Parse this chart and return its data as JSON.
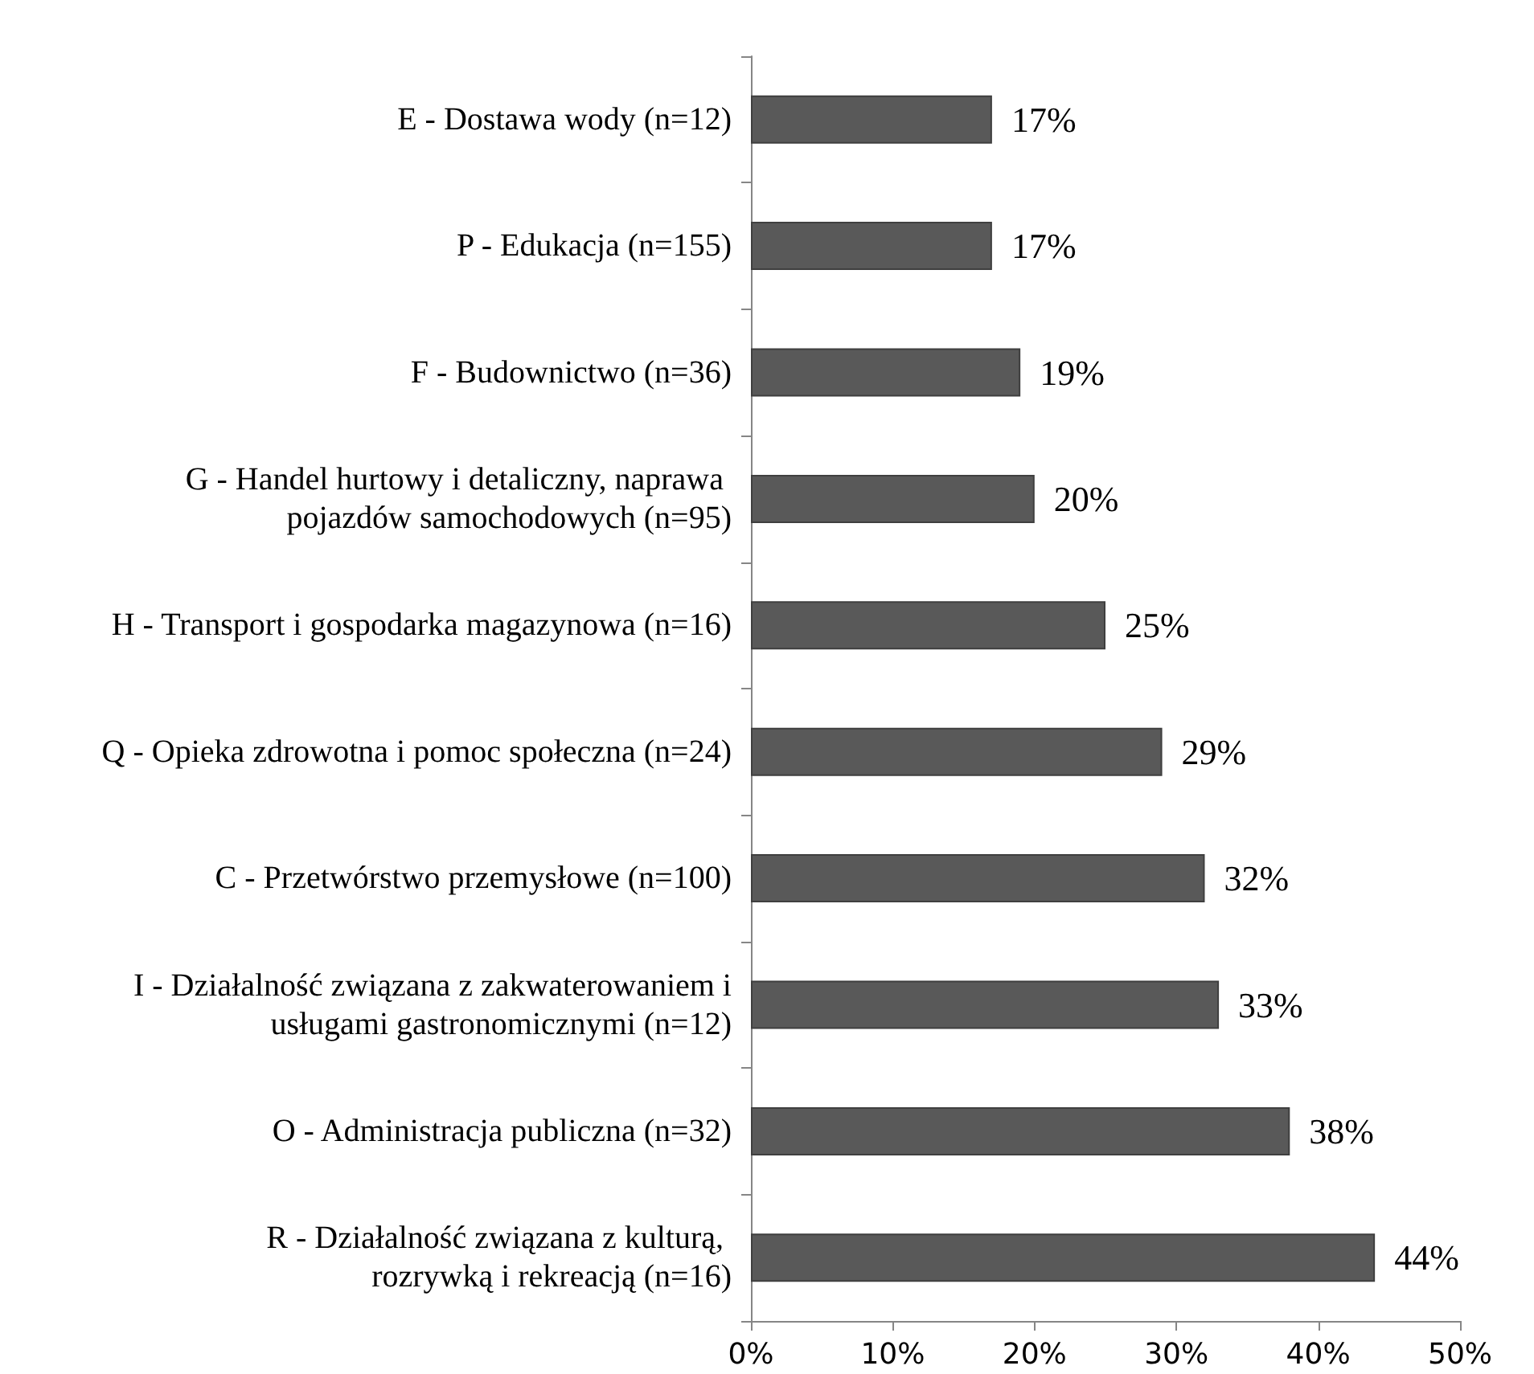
{
  "chart_data": {
    "type": "bar",
    "orientation": "horizontal",
    "categories": [
      "E - Dostawa wody (n=12)",
      "P - Edukacja (n=155)",
      "F - Budownictwo (n=36)",
      "G - Handel hurtowy i detaliczny, naprawa pojazdów samochodowych (n=95)",
      "H - Transport i gospodarka magazynowa (n=16)",
      "Q - Opieka zdrowotna i pomoc społeczna (n=24)",
      "C - Przetwórstwo przemysłowe (n=100)",
      "I - Działalność związana z zakwaterowaniem i usługami gastronomicznymi (n=12)",
      "O - Administracja publiczna (n=32)",
      "R - Działalność związana z kulturą, rozrywką i rekreacją (n=16)"
    ],
    "values": [
      17,
      17,
      19,
      20,
      25,
      29,
      32,
      33,
      38,
      44
    ],
    "value_labels": [
      "17%",
      "17%",
      "19%",
      "20%",
      "25%",
      "29%",
      "32%",
      "33%",
      "38%",
      "44%"
    ],
    "color": "#595959",
    "xlim": [
      0,
      50
    ],
    "xticks": [
      {
        "value": 0,
        "label": "0%"
      },
      {
        "value": 10,
        "label": "10%"
      },
      {
        "value": 20,
        "label": "20%"
      },
      {
        "value": 30,
        "label": "30%"
      },
      {
        "value": 40,
        "label": "40%"
      },
      {
        "value": 50,
        "label": "50%"
      }
    ],
    "grid": false
  }
}
